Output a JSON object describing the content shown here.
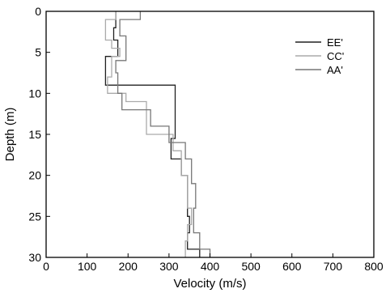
{
  "chart_data": {
    "type": "line",
    "xlabel": "Velocity (m/s)",
    "ylabel": "Depth (m)",
    "xlim": [
      0,
      800
    ],
    "ylim": [
      0,
      30
    ],
    "y_inverted": true,
    "x_ticks": [
      0,
      100,
      200,
      300,
      400,
      500,
      600,
      700,
      800
    ],
    "y_ticks": [
      0,
      5,
      10,
      15,
      20,
      25,
      30
    ],
    "legend_placement": "top-right",
    "grid": false,
    "series": [
      {
        "name": "EE'",
        "color": "#202020",
        "x": [
          170,
          170,
          165,
          165,
          175,
          175,
          175,
          175,
          145,
          145,
          145,
          145,
          315,
          315,
          305,
          305,
          330,
          330,
          345,
          345,
          350,
          350,
          345,
          345,
          375,
          375
        ],
        "y": [
          0,
          2,
          2,
          3.5,
          3.5,
          4.5,
          4.5,
          5.5,
          5.5,
          9,
          9,
          9,
          9,
          15.5,
          15.5,
          18,
          18,
          20,
          20,
          25,
          25,
          27,
          27,
          29,
          29,
          30
        ]
      },
      {
        "name": "CC'",
        "color": "#aaaaaa",
        "x": [
          170,
          170,
          145,
          145,
          160,
          160,
          180,
          180,
          160,
          160,
          150,
          150,
          195,
          195,
          245,
          245,
          310,
          310,
          330,
          330,
          345,
          345,
          355,
          355,
          345,
          345,
          340,
          340
        ],
        "y": [
          0,
          1,
          1,
          3.5,
          3.5,
          4.5,
          4.5,
          5.5,
          5.5,
          8,
          8,
          10,
          10,
          11,
          11,
          15,
          15,
          17,
          17,
          20,
          20,
          24,
          24,
          26,
          26,
          28,
          28,
          30
        ]
      },
      {
        "name": "AA'",
        "color": "#777777",
        "x": [
          230,
          230,
          180,
          180,
          195,
          195,
          170,
          170,
          175,
          175,
          185,
          185,
          255,
          255,
          300,
          300,
          340,
          340,
          355,
          355,
          365,
          365,
          360,
          360,
          375,
          375,
          400,
          400
        ],
        "y": [
          0,
          1,
          1,
          3,
          3,
          6,
          6,
          7.5,
          7.5,
          10,
          10,
          12,
          12,
          14,
          14,
          16,
          16,
          18,
          18,
          21,
          21,
          24,
          24,
          27,
          27,
          29,
          29,
          30
        ]
      }
    ]
  }
}
